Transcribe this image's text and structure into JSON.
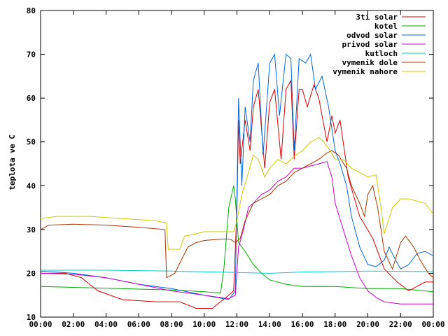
{
  "chart_data": {
    "type": "line",
    "title": "",
    "xlabel": "",
    "ylabel": "teplota ve C",
    "xlim": [
      0,
      24
    ],
    "ylim": [
      10,
      80
    ],
    "grid": false,
    "legend_position": "top-right",
    "x_tick_labels": [
      "00:00",
      "02:00",
      "04:00",
      "06:00",
      "08:00",
      "10:00",
      "12:00",
      "14:00",
      "16:00",
      "18:00",
      "20:00",
      "22:00",
      "00:00"
    ],
    "y_tick_labels": [
      "10",
      "20",
      "30",
      "40",
      "50",
      "60",
      "70",
      "80"
    ],
    "x_ticks": [
      0,
      2,
      4,
      6,
      8,
      10,
      12,
      14,
      16,
      18,
      20,
      22,
      24
    ],
    "y_ticks": [
      10,
      20,
      30,
      40,
      50,
      60,
      70,
      80
    ],
    "series": [
      {
        "name": "3ti solar",
        "color": "#dd0000",
        "points": [
          [
            0,
            20
          ],
          [
            1.5,
            20
          ],
          [
            2.5,
            19
          ],
          [
            3.5,
            16
          ],
          [
            5,
            14
          ],
          [
            7,
            13.5
          ],
          [
            8.5,
            13.5
          ],
          [
            9.5,
            12
          ],
          [
            10.5,
            12
          ],
          [
            11.5,
            15
          ],
          [
            11.8,
            16
          ],
          [
            12,
            35
          ],
          [
            12.1,
            55
          ],
          [
            12.2,
            45
          ],
          [
            12.5,
            55
          ],
          [
            12.8,
            48
          ],
          [
            13,
            58
          ],
          [
            13.3,
            62
          ],
          [
            13.7,
            44
          ],
          [
            14,
            59
          ],
          [
            14.3,
            62
          ],
          [
            14.7,
            46
          ],
          [
            15,
            62
          ],
          [
            15.3,
            64
          ],
          [
            15.5,
            46
          ],
          [
            15.8,
            62
          ],
          [
            16,
            62
          ],
          [
            16.3,
            58
          ],
          [
            16.7,
            63
          ],
          [
            17,
            60
          ],
          [
            17.2,
            56
          ],
          [
            17.5,
            50
          ],
          [
            17.8,
            56
          ],
          [
            18,
            52
          ],
          [
            18.3,
            55
          ],
          [
            18.8,
            42
          ],
          [
            19.5,
            33
          ],
          [
            20.3,
            28
          ],
          [
            21,
            21
          ],
          [
            21.8,
            18
          ],
          [
            22.5,
            16
          ],
          [
            23,
            17
          ],
          [
            23.5,
            18
          ],
          [
            24,
            18
          ]
        ]
      },
      {
        "name": "kotel",
        "color": "#00aa00",
        "points": [
          [
            0,
            17
          ],
          [
            2,
            16.8
          ],
          [
            4,
            16.6
          ],
          [
            6,
            16.4
          ],
          [
            8,
            16.2
          ],
          [
            10,
            15.8
          ],
          [
            11,
            15.5
          ],
          [
            11.2,
            21
          ],
          [
            11.5,
            35
          ],
          [
            11.8,
            40
          ],
          [
            11.9,
            37
          ],
          [
            12.1,
            27
          ],
          [
            12.5,
            25
          ],
          [
            13,
            22
          ],
          [
            13.5,
            20
          ],
          [
            14,
            18.5
          ],
          [
            15,
            17.5
          ],
          [
            16,
            17
          ],
          [
            18,
            17
          ],
          [
            20,
            16.5
          ],
          [
            22,
            16.5
          ],
          [
            24,
            15.8
          ]
        ]
      },
      {
        "name": "odvod solar",
        "color": "#0066dd",
        "points": [
          [
            0,
            20.5
          ],
          [
            2,
            20
          ],
          [
            4,
            19
          ],
          [
            6,
            17.5
          ],
          [
            8,
            16.5
          ],
          [
            10,
            15
          ],
          [
            11.5,
            14
          ],
          [
            11.9,
            16
          ],
          [
            12.1,
            60
          ],
          [
            12.3,
            40
          ],
          [
            12.5,
            58
          ],
          [
            12.8,
            50
          ],
          [
            13,
            64
          ],
          [
            13.3,
            68
          ],
          [
            13.6,
            47
          ],
          [
            14,
            68
          ],
          [
            14.3,
            70
          ],
          [
            14.6,
            56
          ],
          [
            15,
            70
          ],
          [
            15.3,
            69
          ],
          [
            15.5,
            48
          ],
          [
            15.8,
            69
          ],
          [
            16.2,
            68
          ],
          [
            16.5,
            70
          ],
          [
            16.8,
            62
          ],
          [
            17.2,
            65
          ],
          [
            17.6,
            58
          ],
          [
            18,
            48
          ],
          [
            18.3,
            45
          ],
          [
            18.7,
            40
          ],
          [
            19,
            33
          ],
          [
            19.5,
            26
          ],
          [
            20,
            22
          ],
          [
            20.5,
            21.5
          ],
          [
            21,
            23
          ],
          [
            21.3,
            26
          ],
          [
            21.7,
            23
          ],
          [
            22,
            21
          ],
          [
            22.5,
            22
          ],
          [
            23,
            24.5
          ],
          [
            23.5,
            25
          ],
          [
            24,
            24
          ]
        ]
      },
      {
        "name": "privod solar",
        "color": "#cc00cc",
        "points": [
          [
            0,
            20
          ],
          [
            2,
            19.8
          ],
          [
            4,
            19
          ],
          [
            6,
            17.5
          ],
          [
            8,
            16
          ],
          [
            10,
            15
          ],
          [
            11.5,
            14.2
          ],
          [
            11.9,
            15
          ],
          [
            12.1,
            26
          ],
          [
            12.4,
            30
          ],
          [
            12.7,
            35
          ],
          [
            13,
            36
          ],
          [
            13.5,
            38
          ],
          [
            14,
            39
          ],
          [
            14.5,
            41
          ],
          [
            15,
            42
          ],
          [
            15.5,
            44
          ],
          [
            16,
            44
          ],
          [
            16.5,
            44.5
          ],
          [
            17,
            45
          ],
          [
            17.5,
            45.5
          ],
          [
            17.8,
            42
          ],
          [
            18,
            36
          ],
          [
            18.5,
            30
          ],
          [
            19,
            24
          ],
          [
            19.5,
            19
          ],
          [
            20,
            16
          ],
          [
            20.5,
            14.5
          ],
          [
            21,
            13.5
          ],
          [
            22,
            13
          ],
          [
            23,
            13
          ],
          [
            24,
            13
          ]
        ]
      },
      {
        "name": "kutloch",
        "color": "#00cccc",
        "points": [
          [
            0,
            20.7
          ],
          [
            4,
            20.7
          ],
          [
            8,
            20.5
          ],
          [
            12,
            20.2
          ],
          [
            14,
            20
          ],
          [
            16,
            20.3
          ],
          [
            20,
            20.5
          ],
          [
            24,
            20.4
          ]
        ]
      },
      {
        "name": "vymenik dole",
        "color": "#aa3300",
        "points": [
          [
            0,
            30
          ],
          [
            0.5,
            31
          ],
          [
            2,
            31.2
          ],
          [
            4,
            31
          ],
          [
            6,
            30.5
          ],
          [
            7.6,
            30
          ],
          [
            7.7,
            19
          ],
          [
            8.2,
            20
          ],
          [
            9,
            26
          ],
          [
            9.5,
            27
          ],
          [
            10,
            27.5
          ],
          [
            11,
            27.8
          ],
          [
            11.6,
            27.8
          ],
          [
            11.9,
            27
          ],
          [
            12.2,
            28
          ],
          [
            12.5,
            32
          ],
          [
            13,
            36
          ],
          [
            13.5,
            37
          ],
          [
            14,
            38
          ],
          [
            14.5,
            40
          ],
          [
            15,
            41
          ],
          [
            15.5,
            43
          ],
          [
            16,
            44
          ],
          [
            16.5,
            45
          ],
          [
            17,
            46
          ],
          [
            17.5,
            47.5
          ],
          [
            17.8,
            48
          ],
          [
            18.2,
            47
          ],
          [
            18.7,
            44
          ],
          [
            19,
            40
          ],
          [
            19.5,
            36
          ],
          [
            19.8,
            33
          ],
          [
            20,
            38
          ],
          [
            20.3,
            40
          ],
          [
            20.6,
            35
          ],
          [
            21,
            25
          ],
          [
            21.5,
            21
          ],
          [
            22,
            27
          ],
          [
            22.3,
            28.5
          ],
          [
            22.8,
            26
          ],
          [
            23.2,
            23
          ],
          [
            23.7,
            20
          ],
          [
            24,
            19
          ]
        ]
      },
      {
        "name": "vymenik nahore",
        "color": "#cccc00",
        "points": [
          [
            0,
            32.5
          ],
          [
            1,
            33
          ],
          [
            3,
            33
          ],
          [
            5,
            32.5
          ],
          [
            7,
            32
          ],
          [
            7.7,
            31.5
          ],
          [
            7.8,
            25.5
          ],
          [
            8.5,
            25.5
          ],
          [
            8.8,
            28.5
          ],
          [
            9.5,
            29
          ],
          [
            10,
            29.5
          ],
          [
            11,
            29.5
          ],
          [
            11.8,
            29.5
          ],
          [
            12,
            32
          ],
          [
            12.3,
            38
          ],
          [
            12.7,
            43
          ],
          [
            13,
            47
          ],
          [
            13.3,
            46
          ],
          [
            13.7,
            42
          ],
          [
            14,
            44
          ],
          [
            14.5,
            46
          ],
          [
            15,
            45
          ],
          [
            15.3,
            46
          ],
          [
            15.6,
            47
          ],
          [
            16,
            48
          ],
          [
            16.5,
            50
          ],
          [
            17,
            51
          ],
          [
            17.3,
            50
          ],
          [
            17.7,
            48
          ],
          [
            18,
            46
          ],
          [
            18.5,
            46
          ],
          [
            19,
            44
          ],
          [
            19.5,
            43
          ],
          [
            20,
            42
          ],
          [
            20.5,
            42.5
          ],
          [
            20.8,
            35
          ],
          [
            21,
            29
          ],
          [
            21.5,
            35
          ],
          [
            22,
            37
          ],
          [
            22.5,
            37
          ],
          [
            23,
            36.5
          ],
          [
            23.5,
            36
          ],
          [
            24,
            33.5
          ]
        ]
      }
    ]
  }
}
